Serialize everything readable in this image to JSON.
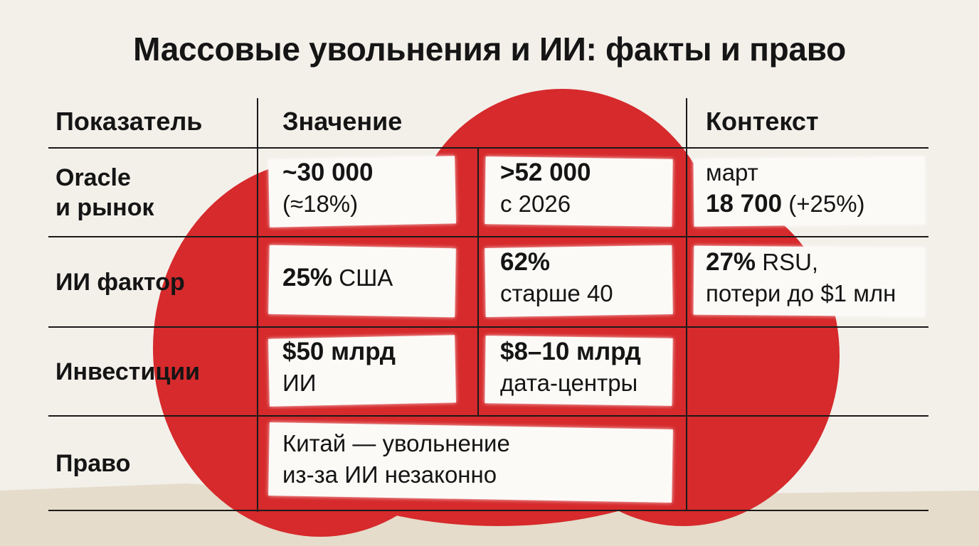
{
  "title": "Массовые увольнения и ИИ: факты и право",
  "table": {
    "headers": [
      "Показатель",
      "Значение",
      "Контекст"
    ],
    "rows": [
      {
        "label": [
          "Oracle",
          "и рынок"
        ],
        "cells": [
          {
            "lines": [
              {
                "strong": "~30 000"
              },
              {
                "text": "(≈18%)"
              }
            ]
          },
          {
            "lines": [
              {
                "strong": ">52 000"
              },
              {
                "text": "с 2026"
              }
            ]
          },
          {
            "lines": [
              {
                "text": "март"
              },
              {
                "strong": "18 700",
                "text": "(+25%)"
              }
            ]
          }
        ]
      },
      {
        "label": [
          "ИИ фактор"
        ],
        "cells": [
          {
            "lines": [
              {
                "strong": "25%",
                "text": "США"
              }
            ]
          },
          {
            "lines": [
              {
                "strong": "62%"
              },
              {
                "text": "старше 40"
              }
            ]
          },
          {
            "lines": [
              {
                "strong": "27%",
                "text": "RSU,"
              },
              {
                "text": "потери до $1 млн"
              }
            ]
          }
        ]
      },
      {
        "label": [
          "Инвестиции"
        ],
        "cells": [
          {
            "lines": [
              {
                "strong": "$50 млрд"
              },
              {
                "text": "ИИ"
              }
            ]
          },
          {
            "lines": [
              {
                "strong": "$8–10 млрд"
              },
              {
                "text": "дата-центры"
              }
            ]
          }
        ]
      },
      {
        "label": [
          "Право"
        ],
        "cells": [
          {
            "lines": [
              {
                "text": "Китай — увольнение"
              },
              {
                "text": "из-за ИИ незаконно"
              }
            ]
          }
        ]
      }
    ]
  }
}
